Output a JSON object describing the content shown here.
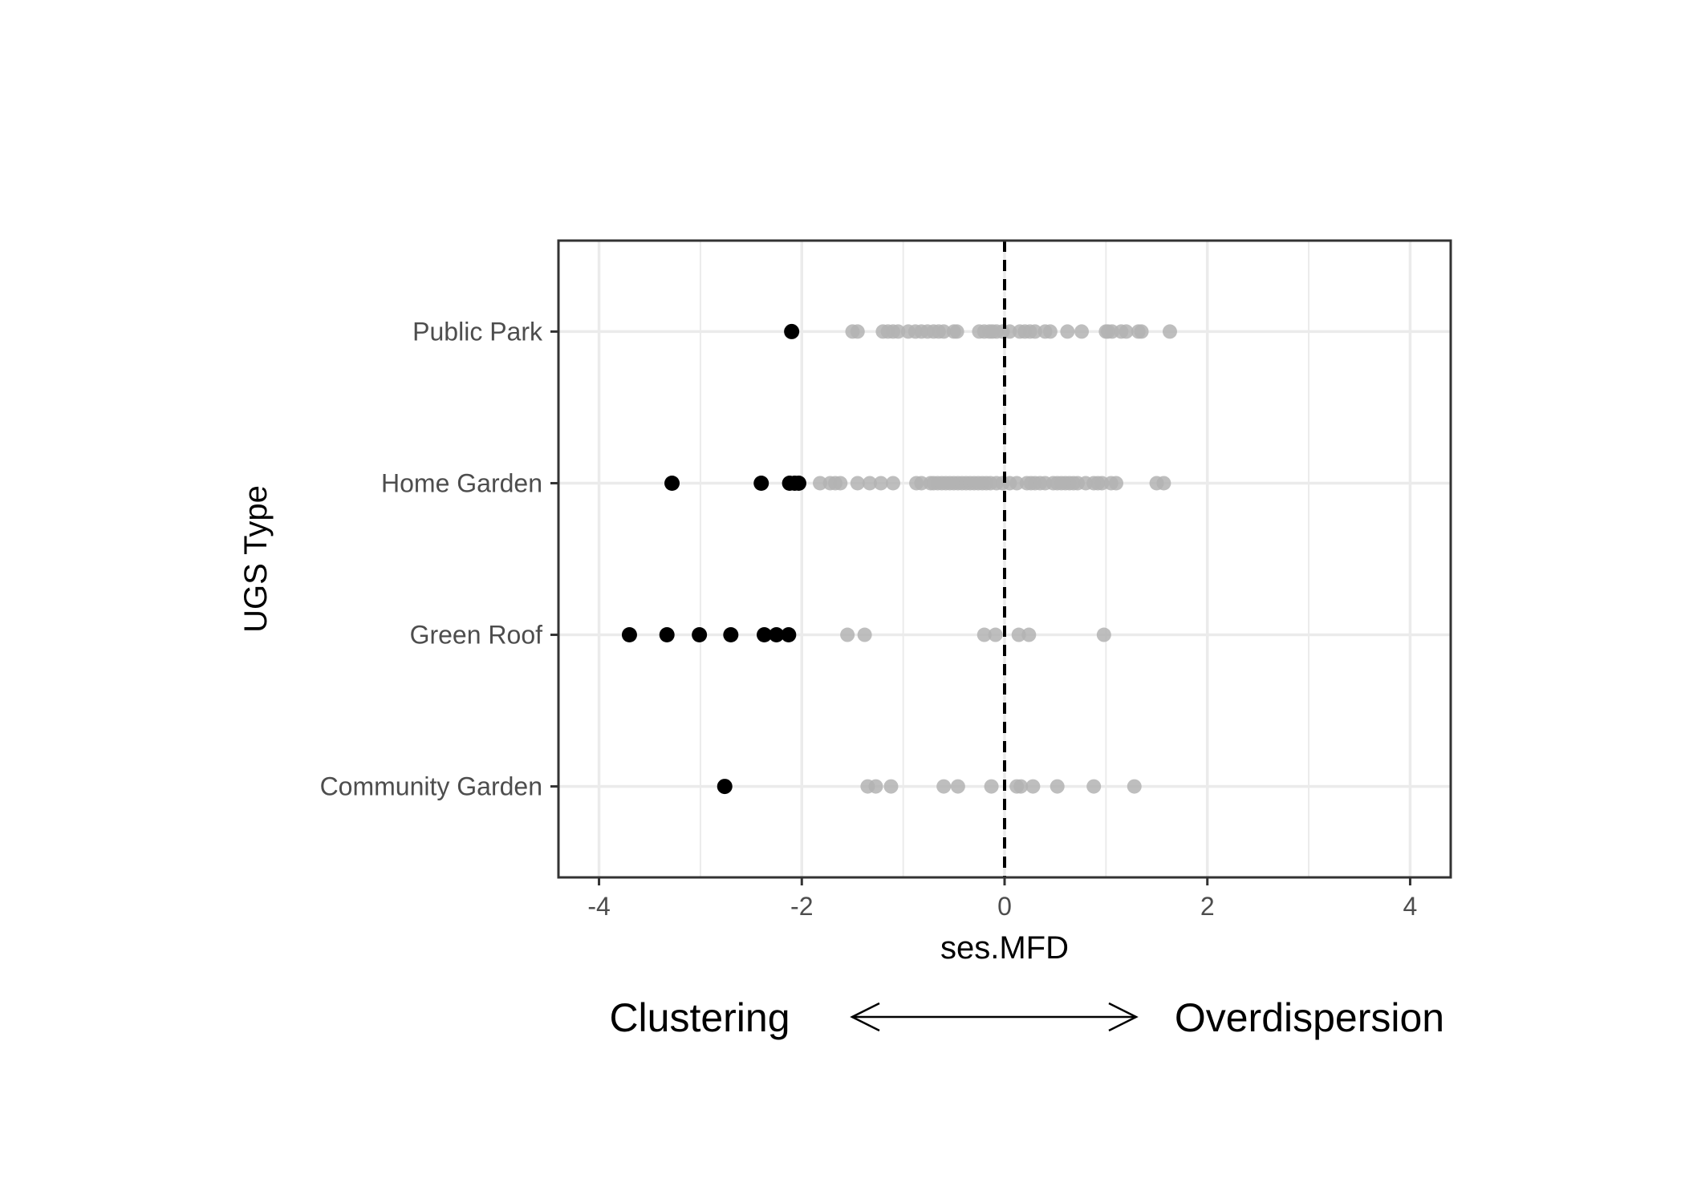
{
  "chart_data": {
    "type": "scatter",
    "title": "",
    "xlabel": "ses.MFD",
    "ylabel": "UGS Type",
    "xlim": [
      -4.4,
      4.4
    ],
    "x_ticks": [
      -4,
      -2,
      0,
      2,
      4
    ],
    "x_tick_labels": [
      "-4",
      "-2",
      "0",
      "2",
      "4"
    ],
    "categories": [
      "Community Garden",
      "Green Roof",
      "Home Garden",
      "Public Park"
    ],
    "reference_line_x": 0,
    "grid": true,
    "legend": "none",
    "colors": {
      "significant": "#000000",
      "nonsignificant": "#b3b3b3",
      "grid": "#ebebeb",
      "frame": "#333333"
    },
    "series": [
      {
        "category": "Public Park",
        "significant": [
          -2.1
        ],
        "nonsignificant": [
          -1.5,
          -1.45,
          -1.2,
          -1.15,
          -1.1,
          -1.05,
          -0.95,
          -0.88,
          -0.82,
          -0.76,
          -0.7,
          -0.65,
          -0.6,
          -0.5,
          -0.47,
          -0.25,
          -0.2,
          -0.15,
          -0.12,
          -0.08,
          -0.02,
          0.05,
          0.15,
          0.2,
          0.25,
          0.3,
          0.4,
          0.45,
          0.62,
          0.76,
          1.0,
          1.02,
          1.06,
          1.15,
          1.2,
          1.32,
          1.35,
          1.63
        ]
      },
      {
        "category": "Home Garden",
        "significant": [
          -3.28,
          -2.4,
          -2.12,
          -2.07,
          -2.03
        ],
        "nonsignificant": [
          -1.82,
          -1.72,
          -1.67,
          -1.62,
          -1.45,
          -1.33,
          -1.22,
          -1.1,
          -0.87,
          -0.82,
          -0.73,
          -0.7,
          -0.66,
          -0.62,
          -0.58,
          -0.54,
          -0.5,
          -0.46,
          -0.42,
          -0.38,
          -0.34,
          -0.3,
          -0.26,
          -0.22,
          -0.18,
          -0.14,
          -0.08,
          -0.02,
          0.05,
          0.12,
          0.22,
          0.26,
          0.3,
          0.35,
          0.4,
          0.48,
          0.52,
          0.56,
          0.6,
          0.64,
          0.68,
          0.72,
          0.8,
          0.88,
          0.92,
          0.96,
          1.05,
          1.1,
          1.5,
          1.57
        ]
      },
      {
        "category": "Green Roof",
        "significant": [
          -3.7,
          -3.33,
          -3.01,
          -2.7,
          -2.37,
          -2.25,
          -2.13
        ],
        "nonsignificant": [
          -1.55,
          -1.38,
          -0.2,
          -0.09,
          0.14,
          0.24,
          0.98
        ]
      },
      {
        "category": "Community Garden",
        "significant": [
          -2.76
        ],
        "nonsignificant": [
          -1.35,
          -1.27,
          -1.12,
          -0.6,
          -0.46,
          -0.13,
          0.12,
          0.16,
          0.28,
          0.52,
          0.88,
          1.28
        ]
      }
    ],
    "annotation": {
      "left_label": "Clustering",
      "right_label": "Overdispersion"
    }
  }
}
